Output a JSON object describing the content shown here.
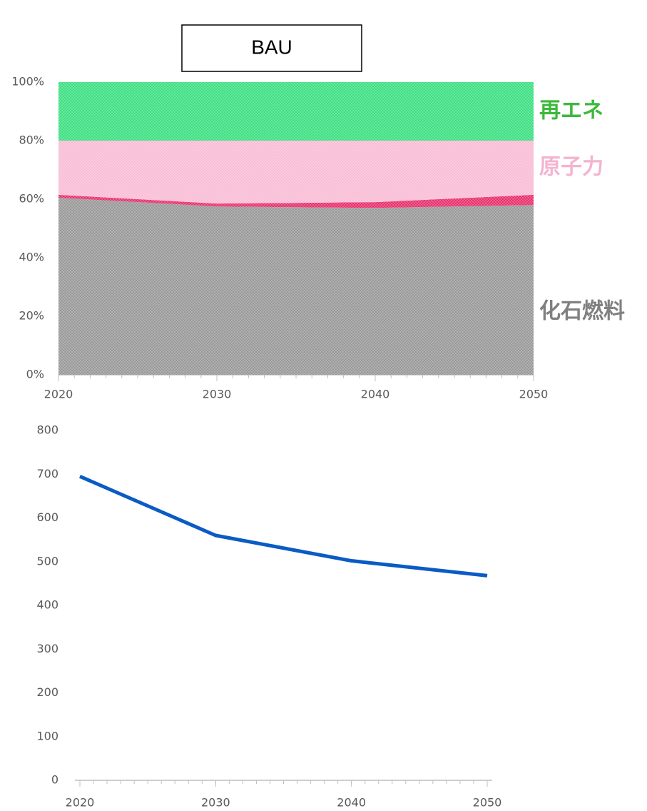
{
  "chart_data": [
    {
      "type": "stacked_area",
      "title": "BAU",
      "x": [
        2020,
        2030,
        2040,
        2050
      ],
      "series": [
        {
          "name": "化石燃料",
          "color": "#9a9a9a",
          "values": [
            60.5,
            57.5,
            57,
            58
          ]
        },
        {
          "color": "#e8336e",
          "values": [
            1,
            1,
            2,
            3.5
          ]
        },
        {
          "name": "原子力",
          "color": "#f9bdd6",
          "values": [
            18.5,
            21.5,
            21,
            18.5
          ]
        },
        {
          "name": "再エネ",
          "color": "#3ee083",
          "values": [
            20,
            20,
            20,
            20
          ]
        }
      ],
      "label_colors": [
        "#808080",
        null,
        "#f4b3cf",
        "#3cb93c"
      ],
      "xlim": [
        2020,
        2050
      ],
      "xticks": [
        2020,
        2030,
        2040,
        2050
      ],
      "ylim": [
        0,
        100
      ],
      "yticks": [
        {
          "value": 0,
          "label": "0%"
        },
        {
          "value": 20,
          "label": "20%"
        },
        {
          "value": 40,
          "label": "40%"
        },
        {
          "value": 60,
          "label": "60%"
        },
        {
          "value": 80,
          "label": "80%"
        },
        {
          "value": 100,
          "label": "100%"
        }
      ]
    },
    {
      "type": "line",
      "x": [
        2020,
        2030,
        2040,
        2050
      ],
      "series": [
        {
          "color": "#0a5bc4",
          "values": [
            695,
            560,
            502,
            468
          ]
        }
      ],
      "xlim": [
        2020,
        2050
      ],
      "xticks": [
        2020,
        2030,
        2040,
        2050
      ],
      "ylim": [
        0,
        800
      ],
      "yticks": [
        0,
        100,
        200,
        300,
        400,
        500,
        600,
        700,
        800
      ]
    }
  ]
}
